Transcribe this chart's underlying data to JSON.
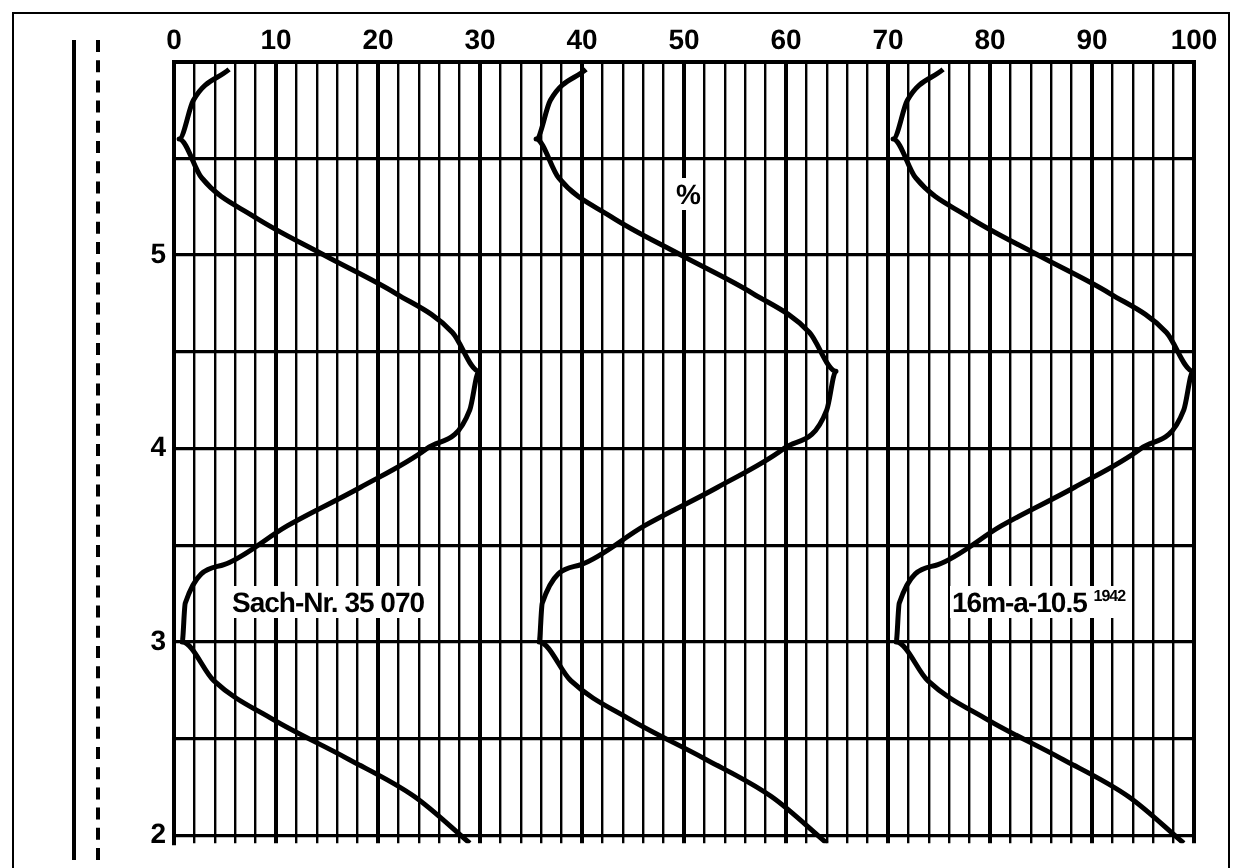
{
  "chart_data": {
    "type": "line",
    "xlabel": "%",
    "xlim": [
      0,
      100
    ],
    "ylim": [
      1.96,
      6
    ],
    "xticks": [
      0,
      {
        "value": 2,
        "label": null
      },
      {
        "value": 4,
        "label": null
      },
      {
        "value": 6,
        "label": null
      },
      {
        "value": 8,
        "label": null
      },
      10,
      {
        "value": 12,
        "label": null
      },
      {
        "value": 14,
        "label": null
      },
      {
        "value": 16,
        "label": null
      },
      {
        "value": 18,
        "label": null
      },
      20,
      {
        "value": 22,
        "label": null
      },
      {
        "value": 24,
        "label": null
      },
      {
        "value": 26,
        "label": null
      },
      {
        "value": 28,
        "label": null
      },
      30,
      {
        "value": 32,
        "label": null
      },
      {
        "value": 34,
        "label": null
      },
      {
        "value": 36,
        "label": null
      },
      {
        "value": 38,
        "label": null
      },
      40,
      {
        "value": 42,
        "label": null
      },
      {
        "value": 44,
        "label": null
      },
      {
        "value": 46,
        "label": null
      },
      {
        "value": 48,
        "label": null
      },
      50,
      {
        "value": 52,
        "label": null
      },
      {
        "value": 54,
        "label": null
      },
      {
        "value": 56,
        "label": null
      },
      {
        "value": 58,
        "label": null
      },
      60,
      {
        "value": 62,
        "label": null
      },
      {
        "value": 64,
        "label": null
      },
      {
        "value": 66,
        "label": null
      },
      {
        "value": 68,
        "label": null
      },
      70,
      {
        "value": 72,
        "label": null
      },
      {
        "value": 74,
        "label": null
      },
      {
        "value": 76,
        "label": null
      },
      {
        "value": 78,
        "label": null
      },
      80,
      {
        "value": 82,
        "label": null
      },
      {
        "value": 84,
        "label": null
      },
      {
        "value": 86,
        "label": null
      },
      {
        "value": 88,
        "label": null
      },
      90,
      {
        "value": 92,
        "label": null
      },
      {
        "value": 94,
        "label": null
      },
      {
        "value": 96,
        "label": null
      },
      {
        "value": 98,
        "label": null
      },
      100
    ],
    "yticks": [
      {
        "value": 5.5,
        "label": null
      },
      5,
      {
        "value": 4.5,
        "label": null
      },
      4,
      {
        "value": 3.5,
        "label": null
      },
      3,
      {
        "value": 2.5,
        "label": null
      },
      2
    ],
    "grid": true,
    "marker": "none",
    "line_style": "solid",
    "legend": false,
    "series": [
      {
        "color": "#000000",
        "x": [
          5.4,
          1.9,
          0.5,
          2.7,
          7.8,
          14.7,
          21.8,
          27.3,
          29.9,
          29.0,
          24.8,
          18.3,
          11.1,
          4.9,
          1.1,
          0.8,
          3.9,
          9.7,
          16.9,
          23.6,
          29.0
        ],
        "values": [
          5.96,
          5.8,
          5.6,
          5.4,
          5.2,
          5.0,
          4.8,
          4.6,
          4.4,
          4.2,
          4.0,
          3.8,
          3.6,
          3.4,
          3.2,
          3.0,
          2.8,
          2.6,
          2.4,
          2.2,
          1.96
        ]
      },
      {
        "color": "#000000",
        "x": [
          40.4,
          36.9,
          35.5,
          37.7,
          42.8,
          49.7,
          56.8,
          62.3,
          64.9,
          64.0,
          59.8,
          53.3,
          46.1,
          39.9,
          36.1,
          35.8,
          38.9,
          44.7,
          51.9,
          58.6,
          64.0
        ],
        "values": [
          5.96,
          5.8,
          5.6,
          5.4,
          5.2,
          5.0,
          4.8,
          4.6,
          4.4,
          4.2,
          4.0,
          3.8,
          3.6,
          3.4,
          3.2,
          3.0,
          2.8,
          2.6,
          2.4,
          2.2,
          1.96
        ]
      },
      {
        "color": "#000000",
        "x": [
          75.4,
          71.9,
          70.5,
          72.7,
          77.8,
          84.7,
          91.8,
          97.3,
          99.9,
          99.0,
          94.8,
          88.3,
          81.1,
          74.9,
          71.1,
          70.8,
          73.9,
          79.7,
          86.9,
          93.6,
          99.0
        ],
        "values": [
          5.96,
          5.8,
          5.6,
          5.4,
          5.2,
          5.0,
          4.8,
          4.6,
          4.4,
          4.2,
          4.0,
          3.8,
          3.6,
          3.4,
          3.2,
          3.0,
          2.8,
          2.6,
          2.4,
          2.2,
          1.96
        ]
      }
    ],
    "annotations": [
      "Sach-Nr. 35 070",
      "16m-a-10.5 $^{1942}$"
    ]
  }
}
